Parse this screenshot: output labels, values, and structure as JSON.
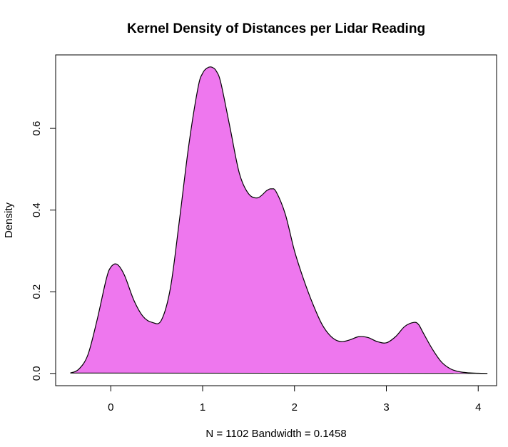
{
  "chart_data": {
    "type": "area",
    "title": "Kernel Density of Distances per Lidar Reading",
    "xlabel": "N = 1102   Bandwidth = 0.1458",
    "ylabel": "Density",
    "xlim": [
      -0.6,
      4.2
    ],
    "ylim": [
      -0.03,
      0.78
    ],
    "x_ticks": [
      0,
      1,
      2,
      3,
      4
    ],
    "y_ticks": [
      0.0,
      0.2,
      0.4,
      0.6
    ],
    "x_tick_labels": [
      "0",
      "1",
      "2",
      "3",
      "4"
    ],
    "y_tick_labels": [
      "0.0",
      "0.2",
      "0.4",
      "0.6"
    ],
    "grid": false,
    "legend": "none",
    "fill_color": "#EE77EE",
    "line_color": "#000000",
    "series": [
      {
        "x": [
          -0.44,
          -0.35,
          -0.25,
          -0.15,
          -0.05,
          0.0,
          0.07,
          0.15,
          0.25,
          0.35,
          0.45,
          0.55,
          0.65,
          0.75,
          0.85,
          0.95,
          1.0,
          1.05,
          1.1,
          1.15,
          1.2,
          1.3,
          1.4,
          1.5,
          1.6,
          1.7,
          1.75,
          1.8,
          1.9,
          2.0,
          2.1,
          2.2,
          2.3,
          2.4,
          2.5,
          2.6,
          2.7,
          2.8,
          2.9,
          3.0,
          3.1,
          3.2,
          3.3,
          3.35,
          3.4,
          3.5,
          3.6,
          3.7,
          3.8,
          3.9,
          4.0,
          4.1
        ],
        "y": [
          0.001,
          0.01,
          0.045,
          0.13,
          0.23,
          0.26,
          0.267,
          0.24,
          0.18,
          0.14,
          0.125,
          0.13,
          0.21,
          0.38,
          0.56,
          0.7,
          0.735,
          0.748,
          0.75,
          0.74,
          0.71,
          0.6,
          0.49,
          0.44,
          0.43,
          0.448,
          0.452,
          0.445,
          0.39,
          0.3,
          0.23,
          0.17,
          0.12,
          0.09,
          0.078,
          0.082,
          0.09,
          0.088,
          0.078,
          0.075,
          0.09,
          0.115,
          0.125,
          0.12,
          0.1,
          0.06,
          0.028,
          0.011,
          0.004,
          0.0015,
          0.0005,
          0.0001
        ]
      }
    ]
  }
}
